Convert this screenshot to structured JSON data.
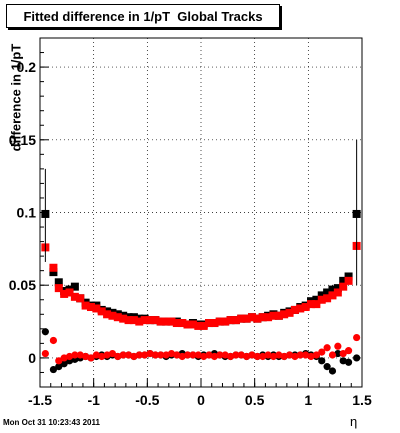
{
  "title": "Fitted difference in 1/pT  Global Tracks",
  "timestamp": "Mon Oct 31 10:23:43 2011",
  "chart_data": {
    "type": "scatter",
    "title": "Fitted difference in 1/pT  Global Tracks",
    "xlabel": "η",
    "ylabel": "difference in 1/pT",
    "xlim": [
      -1.5,
      1.5
    ],
    "ylim": [
      -0.02,
      0.22
    ],
    "xticks": [
      "-1.5",
      "-1",
      "-0.5",
      "0",
      "0.5",
      "1",
      "1.5"
    ],
    "yticks": [
      "0",
      "0.05",
      "0.1",
      "0.15",
      "0.2"
    ],
    "grid": true,
    "series": [
      {
        "color": "#000000",
        "x": [
          -1.45,
          -1.375,
          -1.325,
          -1.275,
          -1.225,
          -1.175,
          -1.125,
          -1.075,
          -1.025,
          -0.975,
          -0.925,
          -0.875,
          -0.825,
          -0.775,
          -0.725,
          -0.675,
          -0.625,
          -0.575,
          -0.525,
          -0.475,
          -0.425,
          -0.375,
          -0.325,
          -0.275,
          -0.225,
          -0.175,
          -0.125,
          -0.075,
          -0.025,
          0.025,
          0.075,
          0.125,
          0.175,
          0.225,
          0.275,
          0.325,
          0.375,
          0.425,
          0.475,
          0.525,
          0.575,
          0.625,
          0.675,
          0.725,
          0.775,
          0.825,
          0.875,
          0.925,
          0.975,
          1.025,
          1.075,
          1.125,
          1.175,
          1.225,
          1.275,
          1.325,
          1.375,
          1.45
        ],
        "y": [
          0.099,
          0.059,
          0.052,
          0.046,
          0.047,
          0.049,
          0.041,
          0.038,
          0.036,
          0.036,
          0.033,
          0.032,
          0.031,
          0.03,
          0.029,
          0.028,
          0.028,
          0.027,
          0.027,
          0.026,
          0.026,
          0.025,
          0.025,
          0.025,
          0.025,
          0.024,
          0.023,
          0.024,
          0.023,
          0.023,
          0.024,
          0.024,
          0.025,
          0.025,
          0.026,
          0.026,
          0.027,
          0.027,
          0.028,
          0.027,
          0.028,
          0.029,
          0.03,
          0.029,
          0.031,
          0.032,
          0.033,
          0.035,
          0.036,
          0.039,
          0.04,
          0.043,
          0.045,
          0.047,
          0.048,
          0.053,
          0.056,
          0.099
        ]
      },
      {
        "color": "#ff0000",
        "x": [
          -1.45,
          -1.375,
          -1.325,
          -1.275,
          -1.225,
          -1.175,
          -1.125,
          -1.075,
          -1.025,
          -0.975,
          -0.925,
          -0.875,
          -0.825,
          -0.775,
          -0.725,
          -0.675,
          -0.625,
          -0.575,
          -0.525,
          -0.475,
          -0.425,
          -0.375,
          -0.325,
          -0.275,
          -0.225,
          -0.175,
          -0.125,
          -0.075,
          -0.025,
          0.025,
          0.075,
          0.125,
          0.175,
          0.225,
          0.275,
          0.325,
          0.375,
          0.425,
          0.475,
          0.525,
          0.575,
          0.625,
          0.675,
          0.725,
          0.775,
          0.825,
          0.875,
          0.925,
          0.975,
          1.025,
          1.075,
          1.125,
          1.175,
          1.225,
          1.275,
          1.325,
          1.375,
          1.45
        ],
        "y": [
          0.076,
          0.062,
          0.048,
          0.044,
          0.045,
          0.042,
          0.041,
          0.036,
          0.035,
          0.034,
          0.032,
          0.03,
          0.029,
          0.028,
          0.027,
          0.026,
          0.026,
          0.025,
          0.026,
          0.026,
          0.026,
          0.025,
          0.025,
          0.025,
          0.024,
          0.024,
          0.023,
          0.023,
          0.022,
          0.022,
          0.024,
          0.024,
          0.025,
          0.025,
          0.026,
          0.026,
          0.027,
          0.027,
          0.028,
          0.027,
          0.028,
          0.028,
          0.029,
          0.029,
          0.03,
          0.031,
          0.033,
          0.034,
          0.035,
          0.037,
          0.037,
          0.04,
          0.041,
          0.043,
          0.045,
          0.049,
          0.053,
          0.077
        ]
      },
      {
        "color": "#000000",
        "x": [
          -1.45,
          -1.375,
          -1.325,
          -1.275,
          -1.225,
          -1.175,
          -1.125,
          -1.075,
          -1.025,
          -0.975,
          -0.925,
          -0.875,
          -0.825,
          -0.775,
          -0.725,
          -0.675,
          -0.625,
          -0.575,
          -0.525,
          -0.475,
          -0.425,
          -0.375,
          -0.325,
          -0.275,
          -0.225,
          -0.175,
          -0.125,
          -0.075,
          -0.025,
          0.025,
          0.075,
          0.125,
          0.175,
          0.225,
          0.275,
          0.325,
          0.375,
          0.425,
          0.475,
          0.525,
          0.575,
          0.625,
          0.675,
          0.725,
          0.775,
          0.825,
          0.875,
          0.925,
          0.975,
          1.025,
          1.075,
          1.125,
          1.175,
          1.225,
          1.275,
          1.325,
          1.375,
          1.45
        ],
        "y": [
          0.018,
          -0.008,
          -0.006,
          -0.004,
          -0.002,
          -0.001,
          0.0,
          0.001,
          0.0,
          0.001,
          0.002,
          0.001,
          0.002,
          0.001,
          0.002,
          0.002,
          0.001,
          0.002,
          0.002,
          0.003,
          0.002,
          0.002,
          0.001,
          0.002,
          0.002,
          0.003,
          0.002,
          0.002,
          0.001,
          0.002,
          0.002,
          0.003,
          0.002,
          0.001,
          0.001,
          0.002,
          0.002,
          0.001,
          0.002,
          0.001,
          0.002,
          0.001,
          0.002,
          0.001,
          0.001,
          0.002,
          0.002,
          0.002,
          0.003,
          0.002,
          0.001,
          -0.002,
          -0.006,
          -0.009,
          0.003,
          -0.002,
          -0.003,
          0.0
        ]
      },
      {
        "color": "#ff0000",
        "x": [
          -1.45,
          -1.375,
          -1.325,
          -1.275,
          -1.225,
          -1.175,
          -1.125,
          -1.075,
          -1.025,
          -0.975,
          -0.925,
          -0.875,
          -0.825,
          -0.775,
          -0.725,
          -0.675,
          -0.625,
          -0.575,
          -0.525,
          -0.475,
          -0.425,
          -0.375,
          -0.325,
          -0.275,
          -0.225,
          -0.175,
          -0.125,
          -0.075,
          -0.025,
          0.025,
          0.075,
          0.125,
          0.175,
          0.225,
          0.275,
          0.325,
          0.375,
          0.425,
          0.475,
          0.525,
          0.575,
          0.625,
          0.675,
          0.725,
          0.775,
          0.825,
          0.875,
          0.925,
          0.975,
          1.025,
          1.075,
          1.125,
          1.175,
          1.225,
          1.275,
          1.325,
          1.375,
          1.45
        ],
        "y": [
          0.003,
          0.012,
          -0.002,
          0.0,
          0.001,
          0.002,
          0.002,
          0.001,
          0.0,
          0.002,
          0.001,
          0.002,
          0.003,
          0.001,
          0.002,
          0.002,
          0.001,
          0.002,
          0.002,
          0.003,
          0.002,
          0.002,
          0.002,
          0.003,
          0.002,
          0.001,
          0.002,
          0.002,
          0.002,
          0.001,
          0.002,
          0.001,
          0.002,
          0.002,
          0.001,
          0.002,
          0.002,
          0.001,
          0.002,
          0.001,
          0.001,
          0.002,
          0.001,
          0.002,
          0.001,
          0.002,
          0.001,
          0.002,
          0.002,
          0.001,
          0.002,
          0.004,
          0.007,
          0.002,
          0.008,
          0.003,
          0.005,
          0.014
        ]
      }
    ]
  }
}
